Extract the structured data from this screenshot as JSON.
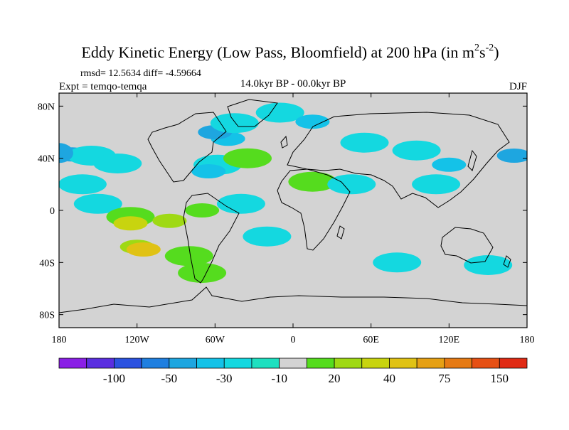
{
  "chart_data": {
    "type": "heatmap",
    "title": "Eddy Kinetic Energy (Low Pass, Bloomfield) at 200 hPa (in m",
    "title_units_sup1": "2",
    "title_units_mid": "s",
    "title_units_sup2": "-2",
    "title_close": ")",
    "stats": "rmsd= 12.5634 diff= -4.59664",
    "expt": "Expt = temqo-temqa",
    "subtitle": "14.0kyr BP - 00.0kyr BP",
    "season": "DJF",
    "xlim": [
      -180,
      180
    ],
    "ylim": [
      -90,
      90
    ],
    "x_tick_values": [
      -180,
      -120,
      -60,
      0,
      60,
      120,
      180
    ],
    "x_tick_labels": [
      "180",
      "120W",
      "60W",
      "0",
      "60E",
      "120E",
      "180"
    ],
    "y_tick_values": [
      80,
      40,
      0,
      -40,
      -80
    ],
    "y_tick_labels": [
      "80N",
      "40N",
      "0",
      "40S",
      "80S"
    ],
    "colorbar": {
      "colors": [
        "#8a1fe6",
        "#5a2ee0",
        "#2b52e0",
        "#1f7fe0",
        "#1ea6e0",
        "#14c2e8",
        "#14d8e0",
        "#1ee0c0",
        "#d3d3d3",
        "#55dc1e",
        "#9fd914",
        "#c8d40f",
        "#e0c214",
        "#e6a014",
        "#e67a14",
        "#e65014",
        "#e02a14"
      ],
      "labels": [
        "-100",
        "-50",
        "-30",
        "-10",
        "20",
        "40",
        "75",
        "150"
      ],
      "label_after_box": [
        1,
        3,
        5,
        7,
        9,
        11,
        13,
        15
      ]
    },
    "field_values": [
      {
        "lon": -170,
        "lat": 43,
        "value": -35
      },
      {
        "lon": -155,
        "lat": 42,
        "value": -15
      },
      {
        "lon": -135,
        "lat": 36,
        "value": -12
      },
      {
        "lon": -162,
        "lat": 20,
        "value": -12
      },
      {
        "lon": -150,
        "lat": 5,
        "value": -12
      },
      {
        "lon": -125,
        "lat": -5,
        "value": 18
      },
      {
        "lon": -125,
        "lat": -10,
        "value": 40
      },
      {
        "lon": -95,
        "lat": -8,
        "value": 22
      },
      {
        "lon": -70,
        "lat": 0,
        "value": 20
      },
      {
        "lon": -120,
        "lat": -28,
        "value": 25
      },
      {
        "lon": -115,
        "lat": -30,
        "value": 45
      },
      {
        "lon": -80,
        "lat": -35,
        "value": 18
      },
      {
        "lon": -70,
        "lat": -48,
        "value": 18
      },
      {
        "lon": -58,
        "lat": 35,
        "value": -12
      },
      {
        "lon": -65,
        "lat": 30,
        "value": -25
      },
      {
        "lon": -50,
        "lat": 55,
        "value": -20
      },
      {
        "lon": -60,
        "lat": 60,
        "value": -35
      },
      {
        "lon": -45,
        "lat": 67,
        "value": -15
      },
      {
        "lon": -10,
        "lat": 75,
        "value": -12
      },
      {
        "lon": 15,
        "lat": 68,
        "value": -25
      },
      {
        "lon": -40,
        "lat": 5,
        "value": -12
      },
      {
        "lon": -20,
        "lat": -20,
        "value": -12
      },
      {
        "lon": -35,
        "lat": 40,
        "value": 18
      },
      {
        "lon": 15,
        "lat": 22,
        "value": 18
      },
      {
        "lon": 45,
        "lat": 20,
        "value": -12
      },
      {
        "lon": 55,
        "lat": 52,
        "value": -12
      },
      {
        "lon": 95,
        "lat": 46,
        "value": -12
      },
      {
        "lon": 120,
        "lat": 35,
        "value": -20
      },
      {
        "lon": 170,
        "lat": 42,
        "value": -35
      },
      {
        "lon": 110,
        "lat": 20,
        "value": -12
      },
      {
        "lon": 80,
        "lat": -40,
        "value": -12
      },
      {
        "lon": 150,
        "lat": -42,
        "value": -15
      }
    ]
  }
}
